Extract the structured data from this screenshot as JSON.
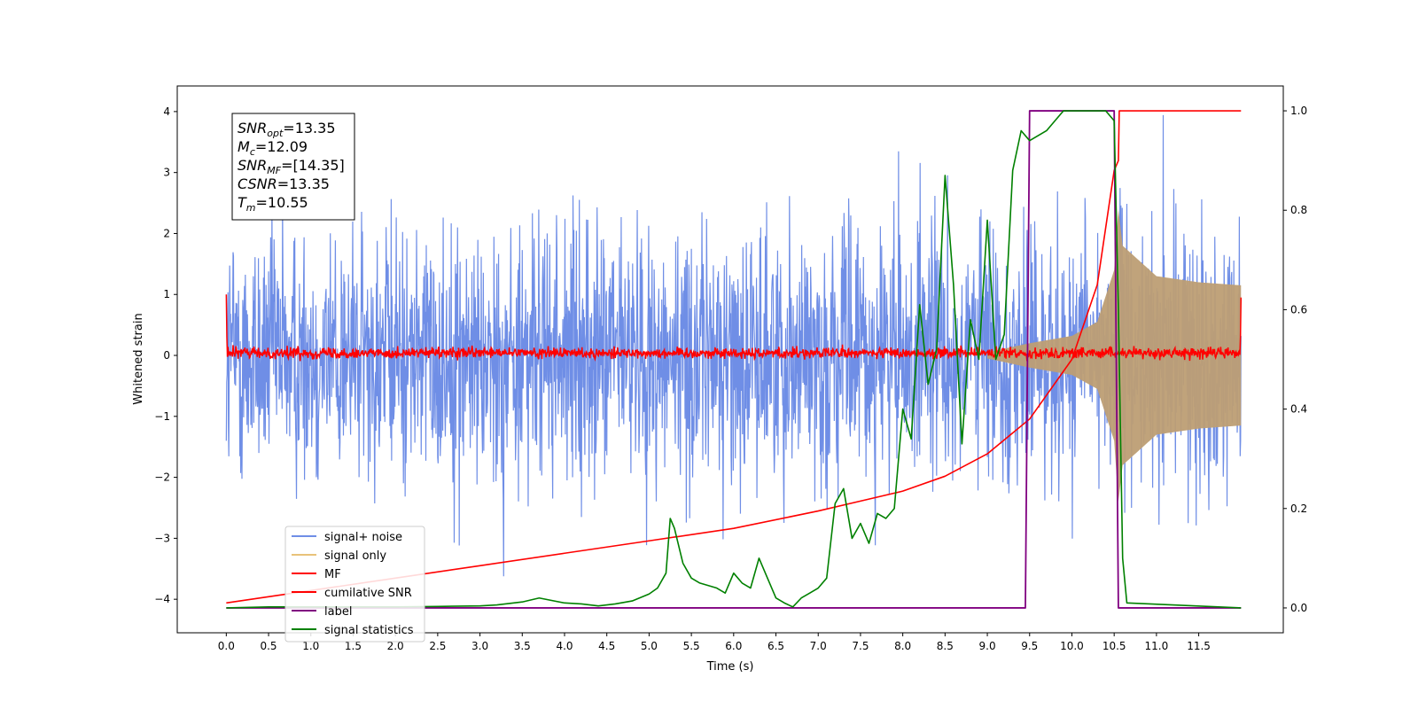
{
  "chart_data": {
    "type": "line",
    "xlabel": "Time (s)",
    "ylabel": "Whitened strain",
    "xlim": [
      -0.58,
      12.5
    ],
    "ylim": [
      -4.55,
      4.42
    ],
    "ylim_right": [
      -0.05,
      1.05
    ],
    "x_ticks": [
      "0.0",
      "0.5",
      "1.0",
      "1.5",
      "2.0",
      "2.5",
      "3.0",
      "3.5",
      "4.0",
      "4.5",
      "5.0",
      "5.5",
      "6.0",
      "6.5",
      "7.0",
      "7.5",
      "8.0",
      "8.5",
      "9.0",
      "9.5",
      "10.0",
      "10.5",
      "11.0",
      "11.5"
    ],
    "y_ticks_left": [
      "4",
      "3",
      "2",
      "1",
      "0",
      "−1",
      "−2",
      "−3",
      "−4"
    ],
    "y_ticks_right": [
      "1.0",
      "0.8",
      "0.6",
      "0.4",
      "0.2",
      "0.0"
    ],
    "legend_position": "lower-left",
    "legend": [
      "signal+ noise",
      "signal only",
      "MF",
      "cumilative SNR",
      "label",
      "signal statistics"
    ],
    "info_box": {
      "snr_opt": {
        "base": "SNR",
        "sub": "opt",
        "value": "=13.35"
      },
      "mc": {
        "base": "M",
        "sub": "c",
        "value": "=12.09"
      },
      "snr_mf": {
        "base": "SNR",
        "sub": "MF",
        "value": "=[14.35]"
      },
      "csnr": {
        "base": "CSNR",
        "sub": "",
        "value": "=13.35"
      },
      "tm": {
        "base": "T",
        "sub": "m",
        "value": "=10.55"
      }
    },
    "series": [
      {
        "name": "signal+ noise",
        "axis": "left",
        "style": "noise band",
        "x_range": [
          0.0,
          12.0
        ],
        "y_range": [
          -4.1,
          4.0
        ]
      },
      {
        "name": "signal only",
        "axis": "left",
        "style": "chirp envelope",
        "x_range": [
          9.0,
          12.0
        ],
        "envelope": [
          [
            9.0,
            0.05
          ],
          [
            9.5,
            0.2
          ],
          [
            10.0,
            0.32
          ],
          [
            10.3,
            0.55
          ],
          [
            10.5,
            1.4
          ],
          [
            10.55,
            2.4
          ],
          [
            10.6,
            1.8
          ],
          [
            11.0,
            1.3
          ],
          [
            11.5,
            1.2
          ],
          [
            12.0,
            1.15
          ]
        ]
      },
      {
        "name": "MF",
        "axis": "left",
        "style": "noise band",
        "x_range": [
          0.0,
          12.0
        ],
        "y_range": [
          -0.12,
          0.2
        ]
      },
      {
        "name": "cumilative SNR",
        "axis": "right",
        "x": [
          0.0,
          1.0,
          2.0,
          3.0,
          4.0,
          5.0,
          6.0,
          7.0,
          7.5,
          8.0,
          8.5,
          9.0,
          9.5,
          10.0,
          10.3,
          10.5,
          10.55,
          10.56,
          12.0
        ],
        "y": [
          0.01,
          0.035,
          0.06,
          0.085,
          0.11,
          0.135,
          0.16,
          0.195,
          0.215,
          0.235,
          0.265,
          0.31,
          0.38,
          0.5,
          0.65,
          0.88,
          0.9,
          1.0,
          1.0
        ]
      },
      {
        "name": "label",
        "axis": "right",
        "x": [
          0.0,
          9.45,
          9.5,
          10.5,
          10.55,
          12.0
        ],
        "y": [
          0.0,
          0.0,
          1.0,
          1.0,
          0.0,
          0.0
        ]
      },
      {
        "name": "signal statistics",
        "axis": "right",
        "x": [
          0.0,
          0.5,
          1.0,
          1.5,
          2.0,
          2.5,
          3.0,
          3.2,
          3.5,
          3.7,
          4.0,
          4.2,
          4.4,
          4.6,
          4.8,
          5.0,
          5.1,
          5.2,
          5.25,
          5.3,
          5.4,
          5.5,
          5.6,
          5.8,
          5.9,
          6.0,
          6.1,
          6.2,
          6.3,
          6.4,
          6.5,
          6.6,
          6.7,
          6.8,
          6.9,
          7.0,
          7.1,
          7.2,
          7.3,
          7.4,
          7.5,
          7.6,
          7.7,
          7.8,
          7.9,
          8.0,
          8.1,
          8.2,
          8.3,
          8.4,
          8.5,
          8.6,
          8.7,
          8.8,
          8.9,
          9.0,
          9.1,
          9.2,
          9.3,
          9.4,
          9.5,
          9.6,
          9.7,
          9.8,
          9.9,
          10.0,
          10.2,
          10.4,
          10.5,
          10.55,
          10.6,
          10.65,
          12.0
        ],
        "y": [
          0.0,
          0.002,
          0.002,
          0.002,
          0.002,
          0.003,
          0.004,
          0.006,
          0.012,
          0.02,
          0.01,
          0.008,
          0.004,
          0.008,
          0.014,
          0.028,
          0.04,
          0.07,
          0.18,
          0.16,
          0.09,
          0.06,
          0.05,
          0.04,
          0.03,
          0.07,
          0.05,
          0.04,
          0.1,
          0.06,
          0.02,
          0.01,
          0.002,
          0.02,
          0.03,
          0.04,
          0.06,
          0.21,
          0.24,
          0.14,
          0.17,
          0.13,
          0.19,
          0.18,
          0.2,
          0.4,
          0.34,
          0.61,
          0.45,
          0.52,
          0.87,
          0.65,
          0.33,
          0.58,
          0.5,
          0.78,
          0.5,
          0.55,
          0.88,
          0.96,
          0.94,
          0.95,
          0.96,
          0.98,
          1.0,
          1.0,
          1.0,
          1.0,
          0.98,
          0.6,
          0.1,
          0.01,
          0.0
        ]
      }
    ]
  },
  "colors": {
    "signal_noise": "#6f8ee6",
    "signal_only": "#e8c27a",
    "chirp_fill": "#bd9e74",
    "mf": "#ff0000",
    "cumulative_snr": "#ff0000",
    "label": "#800080",
    "signal_statistics": "#008000"
  }
}
